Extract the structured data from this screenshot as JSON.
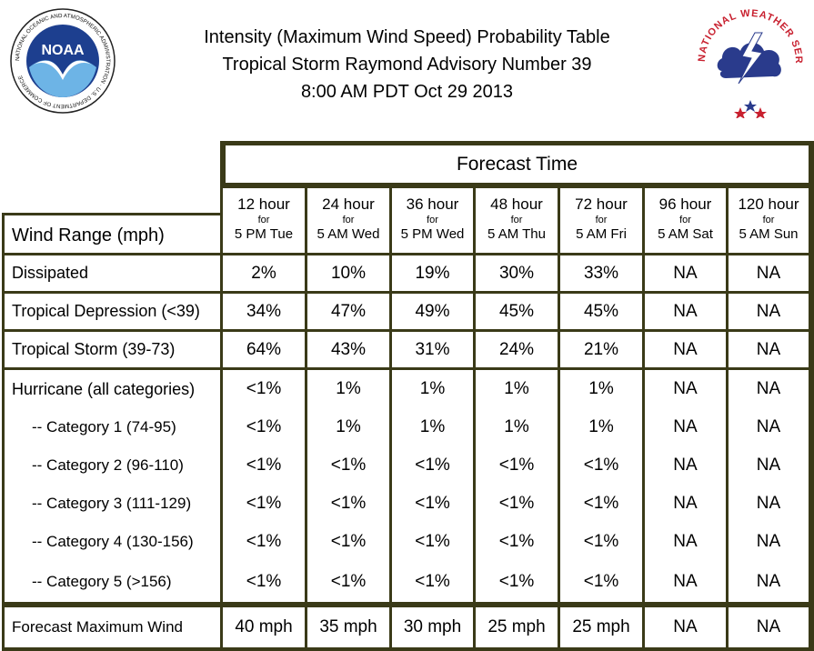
{
  "title": {
    "line1": "Intensity (Maximum Wind Speed) Probability Table",
    "line2": "Tropical Storm Raymond Advisory Number 39",
    "line3": "8:00 AM PDT Oct 29 2013"
  },
  "logos": {
    "left_text": "NOAA",
    "left_ring": "NATIONAL OCEANIC AND ATMOSPHERIC ADMINISTRATION · U.S. DEPARTMENT OF COMMERCE",
    "right_ring": "NATIONAL WEATHER SERVICE"
  },
  "table": {
    "forecast_time_label": "Forecast Time",
    "row_header": "Wind Range (mph)",
    "columns": [
      {
        "hour": "12 hour",
        "for": "for",
        "when": "5 PM Tue"
      },
      {
        "hour": "24 hour",
        "for": "for",
        "when": "5 AM Wed"
      },
      {
        "hour": "36 hour",
        "for": "for",
        "when": "5 PM Wed"
      },
      {
        "hour": "48 hour",
        "for": "for",
        "when": "5 AM Thu"
      },
      {
        "hour": "72 hour",
        "for": "for",
        "when": "5 AM Fri"
      },
      {
        "hour": "96 hour",
        "for": "for",
        "when": "5 AM Sat"
      },
      {
        "hour": "120 hour",
        "for": "for",
        "when": "5 AM Sun"
      }
    ],
    "rows": [
      {
        "label": "Dissipated",
        "values": [
          "2%",
          "10%",
          "19%",
          "30%",
          "33%",
          "NA",
          "NA"
        ]
      },
      {
        "label": "Tropical Depression (<39)",
        "values": [
          "34%",
          "47%",
          "49%",
          "45%",
          "45%",
          "NA",
          "NA"
        ]
      },
      {
        "label": "Tropical Storm (39-73)",
        "values": [
          "64%",
          "43%",
          "31%",
          "24%",
          "21%",
          "NA",
          "NA"
        ]
      },
      {
        "label": "Hurricane (all categories)",
        "values": [
          "<1%",
          "1%",
          "1%",
          "1%",
          "1%",
          "NA",
          "NA"
        ]
      },
      {
        "label": "-- Category 1 (74-95)",
        "values": [
          "<1%",
          "1%",
          "1%",
          "1%",
          "1%",
          "NA",
          "NA"
        ]
      },
      {
        "label": "-- Category 2 (96-110)",
        "values": [
          "<1%",
          "<1%",
          "<1%",
          "<1%",
          "<1%",
          "NA",
          "NA"
        ]
      },
      {
        "label": "-- Category 3 (111-129)",
        "values": [
          "<1%",
          "<1%",
          "<1%",
          "<1%",
          "<1%",
          "NA",
          "NA"
        ]
      },
      {
        "label": "-- Category 4 (130-156)",
        "values": [
          "<1%",
          "<1%",
          "<1%",
          "<1%",
          "<1%",
          "NA",
          "NA"
        ]
      },
      {
        "label": "-- Category 5 (>156)",
        "values": [
          "<1%",
          "<1%",
          "<1%",
          "<1%",
          "<1%",
          "NA",
          "NA"
        ]
      },
      {
        "label": "Forecast Maximum Wind",
        "values": [
          "40 mph",
          "35 mph",
          "30 mph",
          "25 mph",
          "25 mph",
          "NA",
          "NA"
        ]
      }
    ]
  },
  "colors": {
    "border": "#3a3a18",
    "noaa_blue": "#1d3f8f",
    "nws_red": "#c8202f"
  }
}
